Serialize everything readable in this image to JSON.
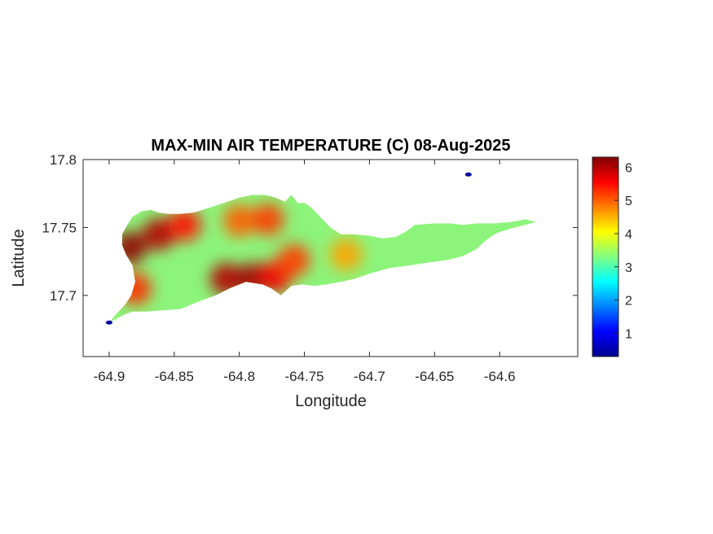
{
  "chart_data": {
    "type": "heatmap",
    "title": "MAX-MIN AIR TEMPERATURE (C) 08-Aug-2025",
    "xlabel": "Longitude",
    "ylabel": "Latitude",
    "xlim": [
      -64.92,
      -64.54
    ],
    "ylim": [
      17.655,
      17.8
    ],
    "xticks": [
      -64.9,
      -64.85,
      -64.8,
      -64.75,
      -64.7,
      -64.65,
      -64.6
    ],
    "xtick_labels": [
      "-64.9",
      "-64.85",
      "-64.8",
      "-64.75",
      "-64.7",
      "-64.65",
      "-64.6"
    ],
    "yticks": [
      17.7,
      17.75,
      17.8
    ],
    "ytick_labels": [
      "17.7",
      "17.75",
      "17.8"
    ],
    "colormap": "jet",
    "clim": [
      0.3,
      6.3
    ],
    "colorbar_ticks": [
      1,
      2,
      3,
      4,
      5,
      6
    ],
    "colorbar_tick_labels": [
      "1",
      "2",
      "3",
      "4",
      "5",
      "6"
    ],
    "grid": false,
    "island_outline": [
      [
        -64.882,
        17.758
      ],
      [
        -64.875,
        17.762
      ],
      [
        -64.868,
        17.763
      ],
      [
        -64.862,
        17.761
      ],
      [
        -64.855,
        17.76
      ],
      [
        -64.845,
        17.76
      ],
      [
        -64.835,
        17.761
      ],
      [
        -64.825,
        17.764
      ],
      [
        -64.812,
        17.768
      ],
      [
        -64.8,
        17.772
      ],
      [
        -64.79,
        17.774
      ],
      [
        -64.78,
        17.774
      ],
      [
        -64.772,
        17.772
      ],
      [
        -64.765,
        17.769
      ],
      [
        -64.76,
        17.774
      ],
      [
        -64.755,
        17.768
      ],
      [
        -64.75,
        17.768
      ],
      [
        -64.745,
        17.765
      ],
      [
        -64.738,
        17.758
      ],
      [
        -64.73,
        17.75
      ],
      [
        -64.722,
        17.745
      ],
      [
        -64.712,
        17.745
      ],
      [
        -64.7,
        17.744
      ],
      [
        -64.69,
        17.742
      ],
      [
        -64.68,
        17.743
      ],
      [
        -64.672,
        17.747
      ],
      [
        -64.665,
        17.752
      ],
      [
        -64.65,
        17.753
      ],
      [
        -64.638,
        17.753
      ],
      [
        -64.628,
        17.752
      ],
      [
        -64.618,
        17.753
      ],
      [
        -64.605,
        17.753
      ],
      [
        -64.592,
        17.754
      ],
      [
        -64.58,
        17.756
      ],
      [
        -64.572,
        17.754
      ],
      [
        -64.58,
        17.752
      ],
      [
        -64.592,
        17.749
      ],
      [
        -64.602,
        17.746
      ],
      [
        -64.61,
        17.741
      ],
      [
        -64.618,
        17.734
      ],
      [
        -64.628,
        17.729
      ],
      [
        -64.64,
        17.726
      ],
      [
        -64.655,
        17.724
      ],
      [
        -64.67,
        17.722
      ],
      [
        -64.685,
        17.72
      ],
      [
        -64.7,
        17.716
      ],
      [
        -64.712,
        17.712
      ],
      [
        -64.722,
        17.71
      ],
      [
        -64.733,
        17.708
      ],
      [
        -64.742,
        17.707
      ],
      [
        -64.752,
        17.708
      ],
      [
        -64.76,
        17.707
      ],
      [
        -64.768,
        17.7
      ],
      [
        -64.775,
        17.705
      ],
      [
        -64.782,
        17.708
      ],
      [
        -64.795,
        17.71
      ],
      [
        -64.808,
        17.705
      ],
      [
        -64.818,
        17.7
      ],
      [
        -64.83,
        17.696
      ],
      [
        -64.845,
        17.69
      ],
      [
        -64.858,
        17.689
      ],
      [
        -64.872,
        17.688
      ],
      [
        -64.882,
        17.688
      ],
      [
        -64.888,
        17.686
      ],
      [
        -64.896,
        17.682
      ],
      [
        -64.9,
        17.68
      ],
      [
        -64.895,
        17.686
      ],
      [
        -64.888,
        17.693
      ],
      [
        -64.883,
        17.7
      ],
      [
        -64.88,
        17.71
      ],
      [
        -64.882,
        17.722
      ],
      [
        -64.887,
        17.73
      ],
      [
        -64.89,
        17.737
      ],
      [
        -64.89,
        17.745
      ],
      [
        -64.886,
        17.752
      ]
    ],
    "hot_spots": [
      {
        "lon": -64.862,
        "lat": 17.745,
        "value": 6.0
      },
      {
        "lon": -64.842,
        "lat": 17.752,
        "value": 5.5
      },
      {
        "lon": -64.884,
        "lat": 17.735,
        "value": 6.2
      },
      {
        "lon": -64.88,
        "lat": 17.705,
        "value": 5.3
      },
      {
        "lon": -64.81,
        "lat": 17.712,
        "value": 6.0
      },
      {
        "lon": -64.79,
        "lat": 17.712,
        "value": 6.1
      },
      {
        "lon": -64.772,
        "lat": 17.714,
        "value": 5.6
      },
      {
        "lon": -64.758,
        "lat": 17.726,
        "value": 5.2
      },
      {
        "lon": -64.8,
        "lat": 17.755,
        "value": 5.0
      },
      {
        "lon": -64.778,
        "lat": 17.756,
        "value": 5.2
      },
      {
        "lon": -64.718,
        "lat": 17.73,
        "value": 4.6
      },
      {
        "lon": -64.9,
        "lat": 17.68,
        "value": 0.5
      },
      {
        "lon": -64.624,
        "lat": 17.789,
        "value": 0.5
      }
    ]
  }
}
